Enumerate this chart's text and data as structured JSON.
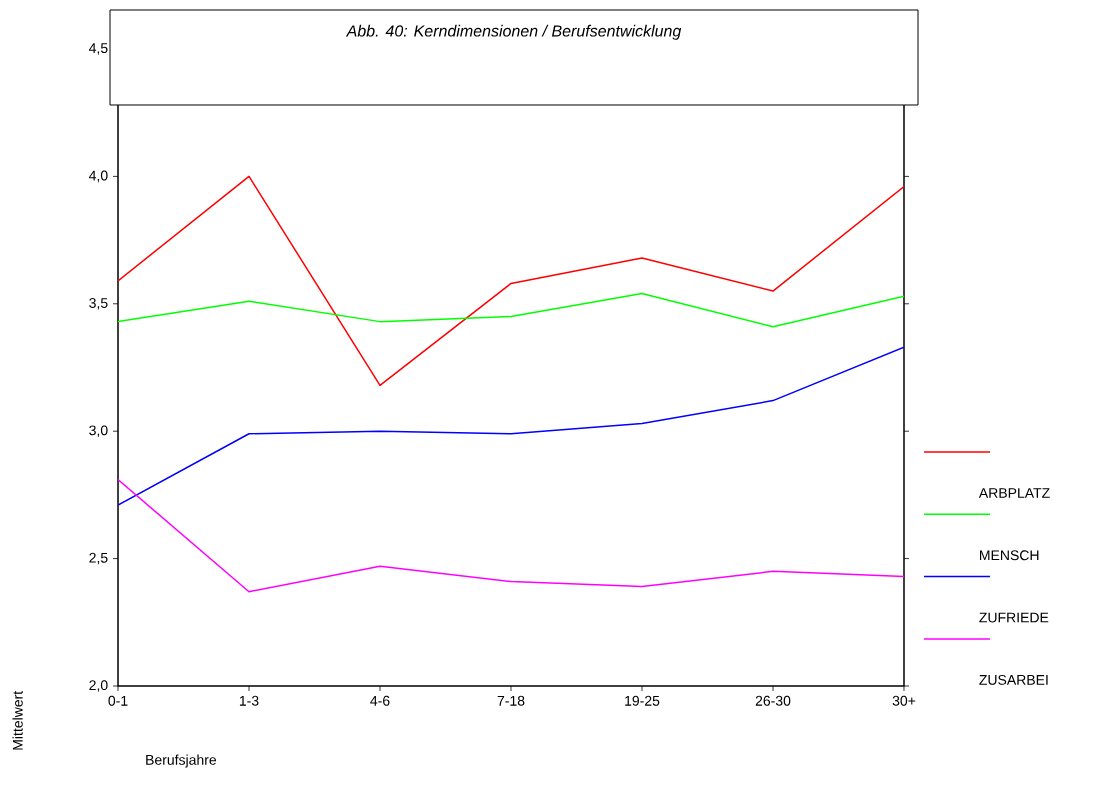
{
  "chart_data": {
    "type": "line",
    "title": "Abb. 40: Kerndimensionen / Berufsentwicklung",
    "xlabel": "Berufsjahre",
    "ylabel": "Mittelwert",
    "categories": [
      "0-1",
      "1-3",
      "4-6",
      "7-18",
      "19-25",
      "26-30",
      "30+"
    ],
    "series": [
      {
        "name": "ARBPLATZ",
        "color": "#ff0000",
        "values": [
          3.59,
          4.0,
          3.18,
          3.58,
          3.68,
          3.55,
          3.96
        ]
      },
      {
        "name": "MENSCH",
        "color": "#00ff00",
        "values": [
          3.43,
          3.51,
          3.43,
          3.45,
          3.54,
          3.41,
          3.53
        ]
      },
      {
        "name": "ZUFRIEDE",
        "color": "#0000ff",
        "values": [
          2.71,
          2.99,
          3.0,
          2.99,
          3.03,
          3.12,
          3.33
        ]
      },
      {
        "name": "ZUSARBEI",
        "color": "#ff00ff",
        "values": [
          2.81,
          2.37,
          2.47,
          2.41,
          2.39,
          2.45,
          2.43
        ]
      }
    ],
    "ylim": [
      2.0,
      4.5
    ],
    "yticks": [
      {
        "value": 2.0,
        "label": "2,0"
      },
      {
        "value": 2.5,
        "label": "2,5"
      },
      {
        "value": 3.0,
        "label": "3,0"
      },
      {
        "value": 3.5,
        "label": "3,5"
      },
      {
        "value": 4.0,
        "label": "4,0"
      },
      {
        "value": 4.5,
        "label": "4,5"
      }
    ],
    "grid": false,
    "legend": "right",
    "marker": "none",
    "line_style": "solid"
  }
}
